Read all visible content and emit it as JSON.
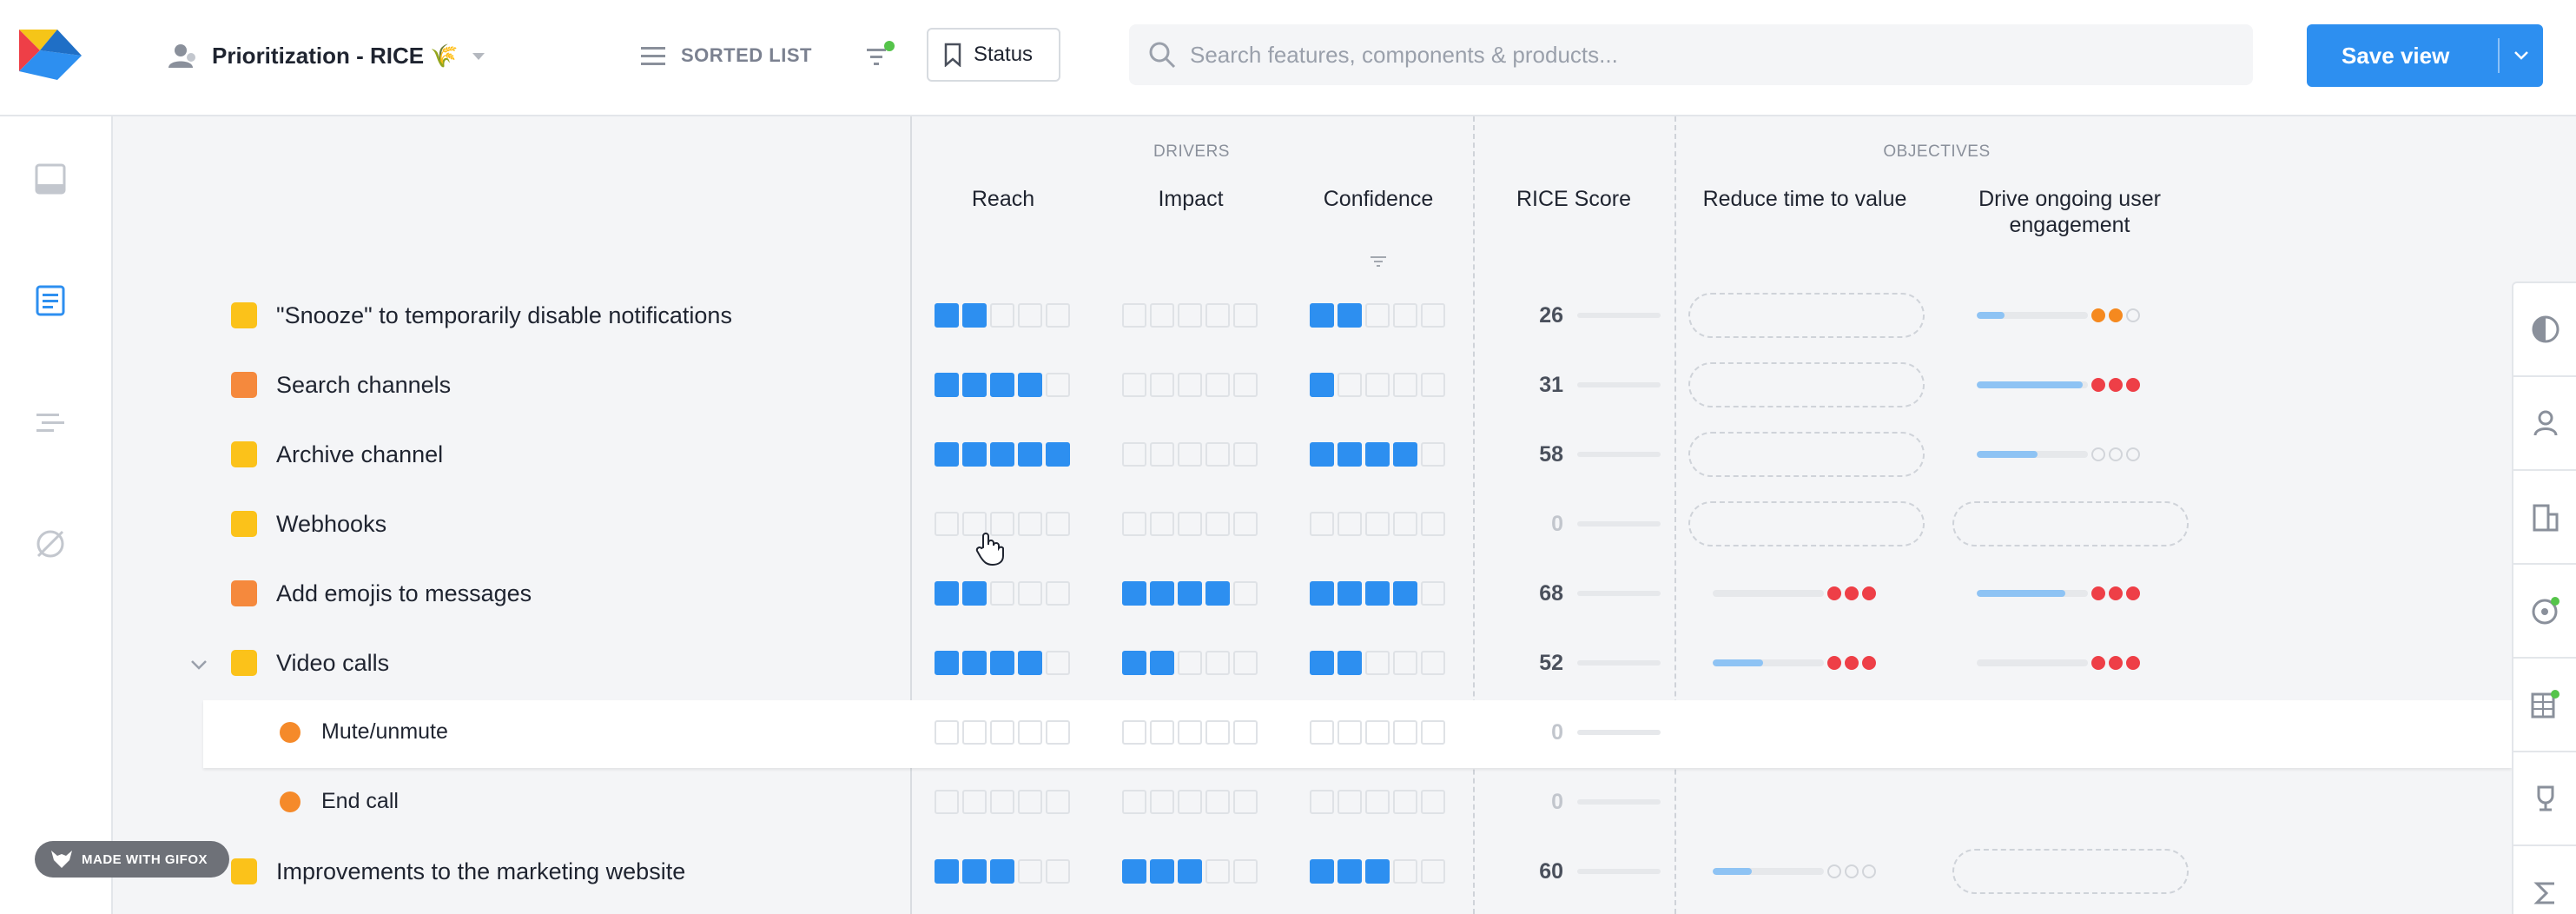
{
  "header": {
    "view_title": "Prioritization - RICE 🌾",
    "sorted_label": "SORTED LIST",
    "status_label": "Status",
    "search_placeholder": "Search features, components & products...",
    "save_label": "Save view"
  },
  "columns": {
    "drivers_group": "DRIVERS",
    "objectives_group": "OBJECTIVES",
    "reach": "Reach",
    "impact": "Impact",
    "confidence": "Confidence",
    "rice_score": "RICE Score",
    "obj1": "Reduce time to value",
    "obj2": "Drive ongoing user engagement"
  },
  "rows": [
    {
      "name": "\"Snooze\" to temporarily disable notifications",
      "reach": 2,
      "impact": 0,
      "confidence": 2,
      "score": "26",
      "obj1": null,
      "obj2": {
        "bar": 0.25,
        "dots": [
          "orange",
          "orange",
          "empty"
        ]
      }
    },
    {
      "name": "Search channels",
      "reach": 4,
      "impact": 0,
      "confidence": 1,
      "score": "31",
      "obj1": null,
      "obj2": {
        "bar": 0.95,
        "dots": [
          "red",
          "red",
          "red"
        ]
      }
    },
    {
      "name": "Archive channel",
      "reach": 5,
      "impact": 0,
      "confidence": 4,
      "score": "58",
      "obj1": null,
      "obj2": {
        "bar": 0.55,
        "dots": [
          "empty",
          "empty",
          "empty"
        ]
      }
    },
    {
      "name": "Webhooks",
      "reach": 0,
      "impact": 0,
      "confidence": 0,
      "score": "0",
      "obj1": null,
      "obj2": null
    },
    {
      "name": "Add emojis to messages",
      "reach": 2,
      "impact": 4,
      "confidence": 4,
      "score": "68",
      "obj1": {
        "bar": 0,
        "dots": [
          "red",
          "red",
          "red"
        ]
      },
      "obj2": {
        "bar": 0.8,
        "dots": [
          "red",
          "red",
          "red"
        ]
      }
    },
    {
      "name": "Video calls",
      "reach": 4,
      "impact": 2,
      "confidence": 2,
      "score": "52",
      "obj1": {
        "bar": 0.45,
        "dots": [
          "red",
          "red",
          "red"
        ]
      },
      "obj2": {
        "bar": 0,
        "dots": [
          "red",
          "red",
          "red"
        ]
      }
    },
    {
      "name": "Mute/unmute",
      "reach": 0,
      "impact": 0,
      "confidence": 0,
      "score": "0",
      "sub": true
    },
    {
      "name": "End call",
      "reach": 0,
      "impact": 0,
      "confidence": 0,
      "score": "0",
      "sub": true
    },
    {
      "name": "Improvements to the marketing website",
      "reach": 3,
      "impact": 3,
      "confidence": 3,
      "score": "60",
      "obj1": {
        "bar": 0.35,
        "dots": [
          "empty",
          "empty",
          "empty"
        ]
      },
      "obj2": null
    }
  ],
  "badge": "MADE WITH GIFOX",
  "colors": {
    "accent": "#2d8ff0",
    "yellow": "#fbc21a",
    "orange": "#f5893d",
    "red": "#ee3f47"
  }
}
